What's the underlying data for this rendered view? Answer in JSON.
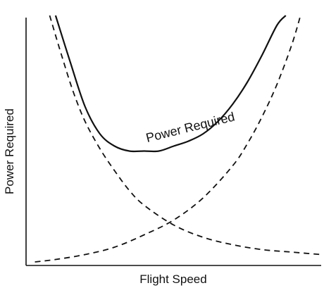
{
  "chart_data": {
    "type": "line",
    "title": "",
    "xlabel": "Flight Speed",
    "ylabel": "Power Required",
    "xlim": [
      0,
      1
    ],
    "ylim": [
      0,
      1
    ],
    "grid": false,
    "series": [
      {
        "name": "Power Required",
        "style": "solid",
        "color": "#111111",
        "x": [
          0.1,
          0.15,
          0.2,
          0.25,
          0.3,
          0.35,
          0.4,
          0.45,
          0.5,
          0.55,
          0.6,
          0.65,
          0.7,
          0.75,
          0.8,
          0.85,
          0.88
        ],
        "y": [
          1.0,
          0.81,
          0.63,
          0.52,
          0.47,
          0.45,
          0.45,
          0.45,
          0.47,
          0.49,
          0.52,
          0.57,
          0.64,
          0.73,
          0.84,
          0.96,
          1.0
        ]
      },
      {
        "name": "",
        "style": "dashed",
        "color": "#111111",
        "x": [
          0.08,
          0.12,
          0.16,
          0.2,
          0.25,
          0.3,
          0.35,
          0.4,
          0.5,
          0.6,
          0.7,
          0.8,
          0.9,
          1.0
        ],
        "y": [
          1.0,
          0.84,
          0.69,
          0.57,
          0.46,
          0.37,
          0.29,
          0.23,
          0.15,
          0.1,
          0.07,
          0.05,
          0.04,
          0.03
        ]
      },
      {
        "name": "",
        "style": "dashed",
        "color": "#111111",
        "x": [
          0.03,
          0.1,
          0.2,
          0.3,
          0.4,
          0.5,
          0.6,
          0.7,
          0.75,
          0.8,
          0.85,
          0.9,
          0.93
        ],
        "y": [
          0.0,
          0.01,
          0.03,
          0.06,
          0.11,
          0.17,
          0.26,
          0.39,
          0.48,
          0.59,
          0.72,
          0.88,
          1.0
        ]
      }
    ],
    "annotations": [
      {
        "text": "Power Required",
        "series_index": 0,
        "x": 0.56,
        "y": 0.53,
        "rotation_deg": -14
      }
    ]
  }
}
